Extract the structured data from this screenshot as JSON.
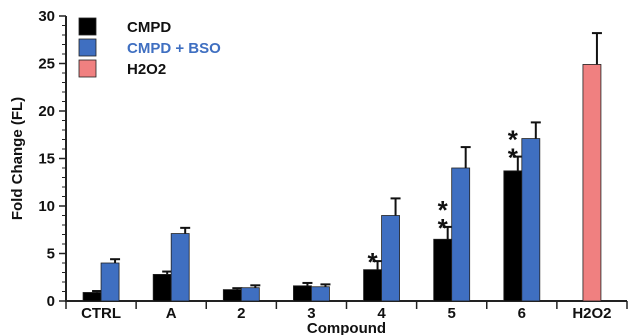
{
  "chart_data": {
    "type": "bar",
    "xlabel": "Compound",
    "ylabel": "Fold Change (FL)",
    "ylim": [
      0,
      30
    ],
    "yticks": [
      0,
      5,
      10,
      15,
      20,
      25,
      30
    ],
    "categories": [
      "CTRL",
      "A",
      "2",
      "3",
      "4",
      "5",
      "6",
      "H2O2"
    ],
    "legend_position": "top-left",
    "grid": false,
    "series": [
      {
        "name": "CMPD",
        "color": "#000000",
        "values": [
          0.9,
          2.8,
          1.2,
          1.6,
          3.3,
          6.5,
          13.7,
          null
        ],
        "errors": [
          0.15,
          0.3,
          0.15,
          0.3,
          0.9,
          1.3,
          1.5,
          null
        ]
      },
      {
        "name": "CMPD + BSO",
        "color": "#3f6fc1",
        "values": [
          4.0,
          7.1,
          1.4,
          1.5,
          9.0,
          14.0,
          17.1,
          null
        ],
        "errors": [
          0.4,
          0.6,
          0.25,
          0.25,
          1.8,
          2.2,
          1.7,
          null
        ]
      },
      {
        "name": "H2O2",
        "color": "#f08080",
        "values": [
          null,
          null,
          null,
          null,
          null,
          null,
          null,
          24.9
        ],
        "errors": [
          null,
          null,
          null,
          null,
          null,
          null,
          null,
          3.3
        ]
      }
    ],
    "annotations": [
      {
        "category": "4",
        "series": "CMPD",
        "text": "*"
      },
      {
        "category": "5",
        "series": "CMPD",
        "text": "**"
      },
      {
        "category": "6",
        "series": "CMPD",
        "text": "**"
      }
    ]
  }
}
